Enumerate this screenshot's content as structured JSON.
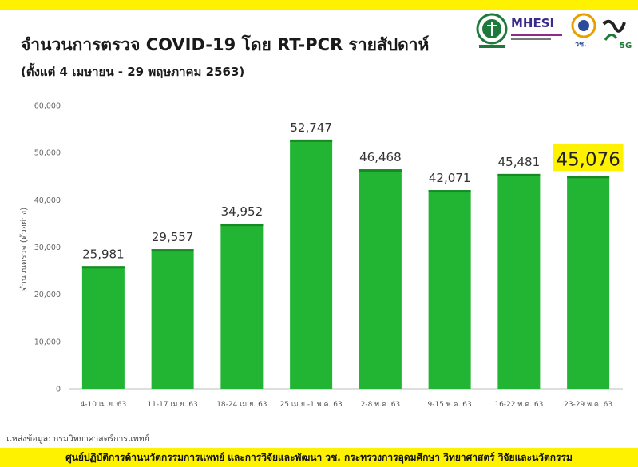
{
  "header": {
    "title": "จำนวนการตรวจ COVID-19 โดย RT-PCR รายสัปดาห์",
    "subtitle": "(ตั้งแต่ 4 เมษายน - 29 พฤษภาคม 2563)"
  },
  "logos": {
    "mhesi_text": "MHESI",
    "vor_sor_text": "วช.",
    "five_g_text": "5G"
  },
  "source": "แหล่งข้อมูล: กรมวิทยาศาสตร์การแพทย์",
  "footer": "ศูนย์ปฏิบัติการด้านนวัตกรรมการแพทย์  และการวิจัยและพัฒนา    วช.   กระทรวงการอุดมศึกษา  วิทยาศาสตร์ วิจัยและนวัตกรรม",
  "colors": {
    "bar": "#22b533",
    "bar_dark": "#178a24",
    "highlight": "#fff200",
    "band": "#fff200"
  },
  "chart_data": {
    "type": "bar",
    "ylabel": "จำนวนตรวจ (ตัวอย่าง)",
    "ylim": [
      0,
      60000
    ],
    "yticks": [
      "0",
      "10,000",
      "20,000",
      "30,000",
      "40,000",
      "50,000",
      "60,000"
    ],
    "grid": false,
    "categories": [
      "4-10 เม.ย. 63",
      "11-17 เม.ย. 63",
      "18-24 เม.ย. 63",
      "25 เม.ย.-1 พ.ค. 63",
      "2-8 พ.ค. 63",
      "9-15 พ.ค. 63",
      "16-22 พ.ค. 63",
      "23-29 พ.ค. 63"
    ],
    "values": [
      25981,
      29557,
      34952,
      52747,
      46468,
      42071,
      45481,
      45076
    ],
    "value_labels": [
      "25,981",
      "29,557",
      "34,952",
      "52,747",
      "46,468",
      "42,071",
      "45,481",
      "45,076"
    ],
    "highlight_index": 7
  }
}
